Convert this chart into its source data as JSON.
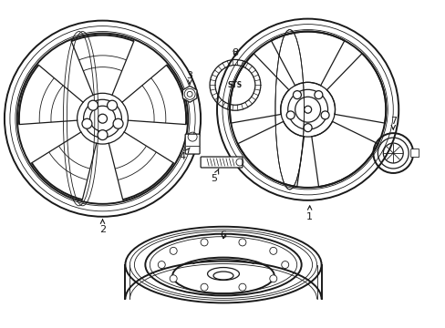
{
  "background_color": "#ffffff",
  "line_color": "#1a1a1a",
  "figsize": [
    4.89,
    3.6
  ],
  "dpi": 100,
  "lw_thick": 1.4,
  "lw_med": 0.9,
  "lw_thin": 0.6
}
